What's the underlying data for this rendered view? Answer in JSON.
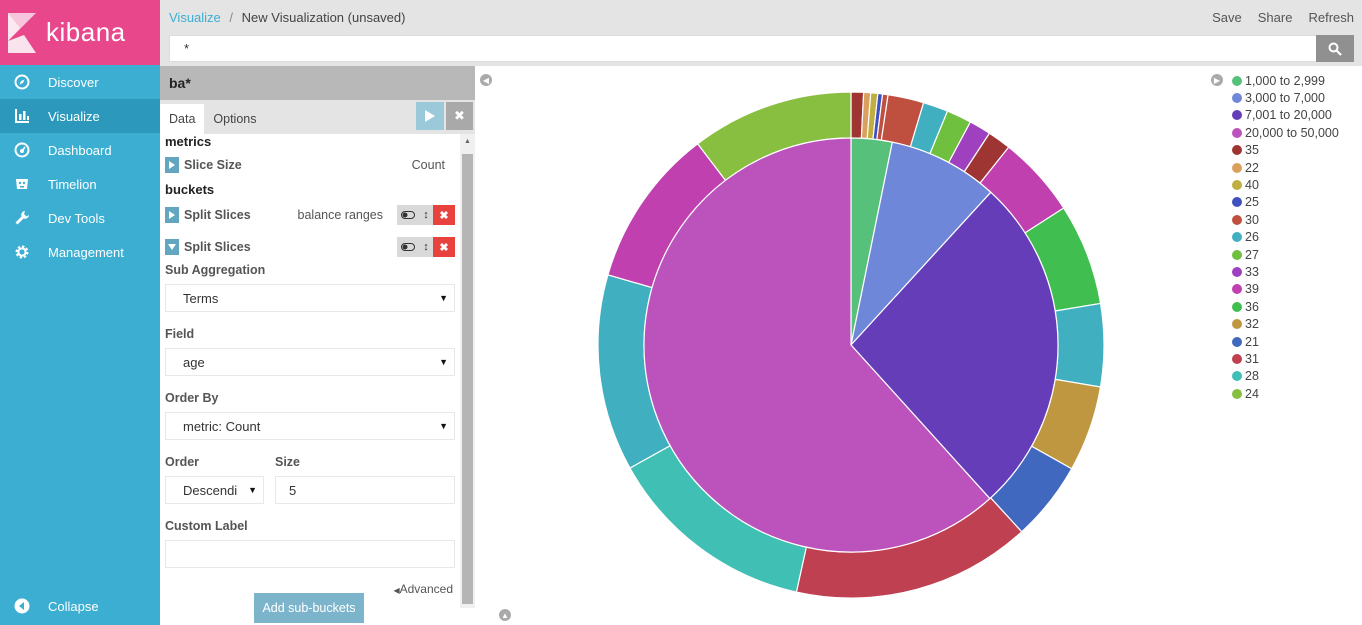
{
  "sidebar": {
    "logo_text": "kibana",
    "items": [
      {
        "label": "Discover",
        "icon": "compass-icon",
        "active": false
      },
      {
        "label": "Visualize",
        "icon": "bar-chart-icon",
        "active": true
      },
      {
        "label": "Dashboard",
        "icon": "dashboard-icon",
        "active": false
      },
      {
        "label": "Timelion",
        "icon": "timelion-icon",
        "active": false
      },
      {
        "label": "Dev Tools",
        "icon": "wrench-icon",
        "active": false
      },
      {
        "label": "Management",
        "icon": "gear-icon",
        "active": false
      }
    ],
    "collapse_label": "Collapse"
  },
  "topbar": {
    "breadcrumb_link": "Visualize",
    "breadcrumb_sep": "/",
    "breadcrumb_current": "New Visualization (unsaved)",
    "actions": [
      "Save",
      "Share",
      "Refresh"
    ],
    "search_value": "*"
  },
  "editor": {
    "index_pattern": "ba*",
    "tabs": [
      "Data",
      "Options"
    ],
    "metrics_title": "metrics",
    "metric_agg_name": "Slice Size",
    "metric_agg_desc": "Count",
    "buckets_title": "buckets",
    "bucket1_name": "Split Slices",
    "bucket1_desc": "balance ranges",
    "bucket2_name": "Split Slices",
    "sub_agg_label": "Sub Aggregation",
    "sub_agg_value": "Terms",
    "field_label": "Field",
    "field_value": "age",
    "order_by_label": "Order By",
    "order_by_value": "metric: Count",
    "order_label": "Order",
    "order_value": "Descendi",
    "size_label": "Size",
    "size_value": "5",
    "custom_label_label": "Custom Label",
    "custom_label_value": "",
    "advanced_label": "Advanced",
    "add_sub_buckets_label": "Add sub-buckets"
  },
  "legend": [
    {
      "label": "1,000 to 2,999",
      "color": "#57c17b"
    },
    {
      "label": "3,000 to 7,000",
      "color": "#6f87d8"
    },
    {
      "label": "7,001 to 20,000",
      "color": "#663db8"
    },
    {
      "label": "20,000 to 50,000",
      "color": "#bc52bc"
    },
    {
      "label": "35",
      "color": "#9e3533"
    },
    {
      "label": "22",
      "color": "#daa05d"
    },
    {
      "label": "40",
      "color": "#bfaf40"
    },
    {
      "label": "25",
      "color": "#4050bf"
    },
    {
      "label": "30",
      "color": "#bf5040"
    },
    {
      "label": "26",
      "color": "#40afbf"
    },
    {
      "label": "27",
      "color": "#70c040"
    },
    {
      "label": "33",
      "color": "#9f40bf"
    },
    {
      "label": "39",
      "color": "#c040b0"
    },
    {
      "label": "36",
      "color": "#40bf50"
    },
    {
      "label": "32",
      "color": "#bf9740"
    },
    {
      "label": "21",
      "color": "#4068bf"
    },
    {
      "label": "31",
      "color": "#bf4050"
    },
    {
      "label": "28",
      "color": "#40bfb5"
    },
    {
      "label": "24",
      "color": "#88bf40"
    }
  ],
  "chart_data": {
    "type": "pie",
    "inner": [
      {
        "label": "1,000 to 2,999",
        "value": 3.2,
        "color": "#57c17b"
      },
      {
        "label": "3,000 to 7,000",
        "value": 8.6,
        "color": "#6f87d8"
      },
      {
        "label": "7,001 to 20,000",
        "value": 26.5,
        "color": "#663db8"
      },
      {
        "label": "20,000 to 50,000",
        "value": 61.7,
        "color": "#bc52bc"
      }
    ],
    "outer": [
      {
        "label": "35",
        "value": 0.8,
        "color": "#9e3533"
      },
      {
        "label": "22",
        "value": 0.45,
        "color": "#daa05d"
      },
      {
        "label": "40",
        "value": 0.45,
        "color": "#bfaf40"
      },
      {
        "label": "25",
        "value": 0.3,
        "color": "#4050bf"
      },
      {
        "label": "30",
        "value": 0.35,
        "color": "#bf5040"
      },
      {
        "label": "30",
        "value": 2.3,
        "color": "#bf5040"
      },
      {
        "label": "26",
        "value": 1.6,
        "color": "#40afbf"
      },
      {
        "label": "27",
        "value": 1.6,
        "color": "#70c040"
      },
      {
        "label": "33",
        "value": 1.4,
        "color": "#9f40bf"
      },
      {
        "label": "35",
        "value": 1.5,
        "color": "#9e3533"
      },
      {
        "label": "39",
        "value": 5.2,
        "color": "#c040b0"
      },
      {
        "label": "36",
        "value": 6.5,
        "color": "#40bf50"
      },
      {
        "label": "26",
        "value": 5.3,
        "color": "#40afbf"
      },
      {
        "label": "32",
        "value": 5.5,
        "color": "#bf9740"
      },
      {
        "label": "21",
        "value": 5.1,
        "color": "#4068bf"
      },
      {
        "label": "31",
        "value": 15.3,
        "color": "#bf4050"
      },
      {
        "label": "28",
        "value": 13.5,
        "color": "#40bfb5"
      },
      {
        "label": "26",
        "value": 12.6,
        "color": "#40afbf"
      },
      {
        "label": "39",
        "value": 10.2,
        "color": "#c040b0"
      },
      {
        "label": "24",
        "value": 10.4,
        "color": "#88bf40"
      }
    ]
  }
}
